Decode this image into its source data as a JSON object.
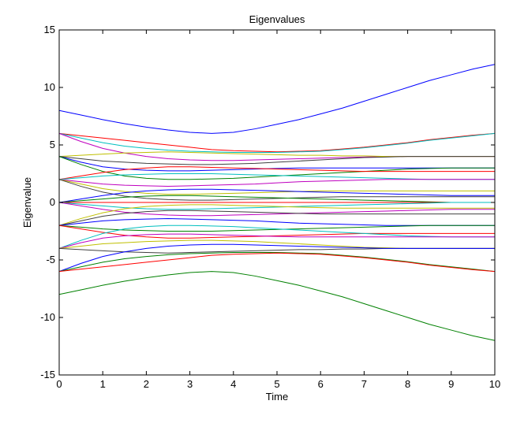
{
  "chart_data": {
    "type": "line",
    "title": "Eigenvalues",
    "xlabel": "Time",
    "ylabel": "Eigenvalue",
    "xlim": [
      0,
      10
    ],
    "ylim": [
      -15,
      15
    ],
    "xticks": [
      0,
      1,
      2,
      3,
      4,
      5,
      6,
      7,
      8,
      9,
      10
    ],
    "yticks": [
      -15,
      -10,
      -5,
      0,
      5,
      10,
      15
    ],
    "xtick_labels": [
      "0",
      "1",
      "2",
      "3",
      "4",
      "5",
      "6",
      "7",
      "8",
      "9",
      "10"
    ],
    "ytick_labels": [
      "-15",
      "-10",
      "-5",
      "0",
      "5",
      "10",
      "15"
    ],
    "grid": false,
    "legend": "none",
    "series_colors": [
      "#0000ff",
      "#008000",
      "#ff0000",
      "#00bfbf",
      "#bf00bf",
      "#bfbf00",
      "#404040"
    ],
    "time": [
      0,
      0.5,
      1,
      1.5,
      2,
      2.5,
      3,
      3.5,
      4,
      4.5,
      5,
      5.5,
      6,
      6.5,
      7,
      7.5,
      8,
      8.5,
      9,
      9.5,
      10
    ],
    "series": [
      {
        "values": [
          8.0,
          7.6,
          7.2,
          6.85,
          6.55,
          6.3,
          6.1,
          6.0,
          6.1,
          6.4,
          6.8,
          7.2,
          7.7,
          8.2,
          8.8,
          9.4,
          10.0,
          10.6,
          11.1,
          11.6,
          12.0
        ]
      },
      {
        "values": [
          -8.0,
          -7.6,
          -7.2,
          -6.85,
          -6.55,
          -6.3,
          -6.1,
          -6.0,
          -6.1,
          -6.4,
          -6.8,
          -7.2,
          -7.7,
          -8.2,
          -8.8,
          -9.4,
          -10.0,
          -10.6,
          -11.1,
          -11.6,
          -12.0
        ]
      },
      {
        "values": [
          6.0,
          5.8,
          5.6,
          5.4,
          5.2,
          5.0,
          4.8,
          4.6,
          4.5,
          4.45,
          4.4,
          4.45,
          4.5,
          4.65,
          4.8,
          5.0,
          5.2,
          5.45,
          5.65,
          5.85,
          6.0
        ]
      },
      {
        "values": [
          6.0,
          5.6,
          5.2,
          4.9,
          4.7,
          4.55,
          4.45,
          4.4,
          4.35,
          4.35,
          4.35,
          4.4,
          4.45,
          4.6,
          4.75,
          4.95,
          5.15,
          5.4,
          5.6,
          5.8,
          6.0
        ]
      },
      {
        "values": [
          6.0,
          5.3,
          4.7,
          4.3,
          4.0,
          3.8,
          3.7,
          3.65,
          3.65,
          3.7,
          3.75,
          3.8,
          3.85,
          3.9,
          3.95,
          4.0,
          4.0,
          4.0,
          4.0,
          4.0,
          4.0
        ]
      },
      {
        "values": [
          4.0,
          4.1,
          4.2,
          4.3,
          4.35,
          4.4,
          4.35,
          4.3,
          4.25,
          4.2,
          4.15,
          4.1,
          4.1,
          4.05,
          4.05,
          4.0,
          4.0,
          4.0,
          4.0,
          4.0,
          4.0
        ]
      },
      {
        "values": [
          4.0,
          3.8,
          3.6,
          3.5,
          3.4,
          3.35,
          3.3,
          3.3,
          3.35,
          3.4,
          3.5,
          3.6,
          3.7,
          3.8,
          3.9,
          3.95,
          4.0,
          4.0,
          4.0,
          4.0,
          4.0
        ]
      },
      {
        "values": [
          4.0,
          3.5,
          3.1,
          2.9,
          2.8,
          2.75,
          2.75,
          2.8,
          2.85,
          2.9,
          2.95,
          3.0,
          3.0,
          3.0,
          3.0,
          3.0,
          3.0,
          3.0,
          3.0,
          3.0,
          3.0
        ]
      },
      {
        "values": [
          4.0,
          3.3,
          2.7,
          2.3,
          2.1,
          2.0,
          2.0,
          2.05,
          2.1,
          2.2,
          2.3,
          2.4,
          2.5,
          2.6,
          2.7,
          2.8,
          2.9,
          2.95,
          3.0,
          3.0,
          3.0
        ]
      },
      {
        "values": [
          2.0,
          2.3,
          2.6,
          2.85,
          3.0,
          3.1,
          3.1,
          3.05,
          3.0,
          2.95,
          2.9,
          2.85,
          2.8,
          2.75,
          2.7,
          2.7,
          2.7,
          2.7,
          2.7,
          2.7,
          2.7
        ]
      },
      {
        "values": [
          2.0,
          2.15,
          2.3,
          2.4,
          2.45,
          2.5,
          2.5,
          2.5,
          2.45,
          2.4,
          2.35,
          2.3,
          2.25,
          2.2,
          2.15,
          2.1,
          2.05,
          2.0,
          2.0,
          2.0,
          2.0
        ]
      },
      {
        "values": [
          2.0,
          1.8,
          1.6,
          1.5,
          1.45,
          1.4,
          1.45,
          1.5,
          1.55,
          1.6,
          1.7,
          1.8,
          1.85,
          1.9,
          1.95,
          2.0,
          2.0,
          2.0,
          2.0,
          2.0,
          2.0
        ]
      },
      {
        "values": [
          2.0,
          1.6,
          1.2,
          0.95,
          0.8,
          0.7,
          0.7,
          0.75,
          0.8,
          0.85,
          0.9,
          0.95,
          1.0,
          1.0,
          1.0,
          1.0,
          1.0,
          1.0,
          1.0,
          1.0,
          1.0
        ]
      },
      {
        "values": [
          2.0,
          1.4,
          0.9,
          0.55,
          0.35,
          0.25,
          0.2,
          0.2,
          0.25,
          0.3,
          0.35,
          0.4,
          0.45,
          0.5,
          0.5,
          0.5,
          0.5,
          0.5,
          0.5,
          0.5,
          0.5
        ]
      },
      {
        "values": [
          0.0,
          0.3,
          0.6,
          0.85,
          1.0,
          1.1,
          1.15,
          1.15,
          1.1,
          1.05,
          1.0,
          0.95,
          0.9,
          0.85,
          0.8,
          0.75,
          0.7,
          0.65,
          0.6,
          0.6,
          0.6
        ]
      },
      {
        "values": [
          0.0,
          0.15,
          0.3,
          0.45,
          0.55,
          0.6,
          0.6,
          0.55,
          0.5,
          0.45,
          0.4,
          0.35,
          0.3,
          0.25,
          0.2,
          0.15,
          0.1,
          0.05,
          0.0,
          0.0,
          0.0
        ]
      },
      {
        "values": [
          0.0,
          0.0,
          0.0,
          0.0,
          0.0,
          0.0,
          0.0,
          0.0,
          0.0,
          0.0,
          0.0,
          0.0,
          0.0,
          0.0,
          0.0,
          0.0,
          0.0,
          0.0,
          0.0,
          0.0,
          0.0
        ]
      },
      {
        "values": [
          0.0,
          -0.15,
          -0.3,
          -0.45,
          -0.55,
          -0.6,
          -0.6,
          -0.55,
          -0.5,
          -0.45,
          -0.4,
          -0.35,
          -0.3,
          -0.25,
          -0.2,
          -0.15,
          -0.1,
          -0.05,
          0.0,
          0.0,
          0.0
        ]
      },
      {
        "values": [
          0.0,
          -0.3,
          -0.6,
          -0.85,
          -1.0,
          -1.1,
          -1.15,
          -1.15,
          -1.1,
          -1.05,
          -1.0,
          -0.95,
          -0.9,
          -0.85,
          -0.8,
          -0.75,
          -0.7,
          -0.65,
          -0.6,
          -0.6,
          -0.6
        ]
      },
      {
        "values": [
          -2.0,
          -1.4,
          -0.9,
          -0.55,
          -0.35,
          -0.25,
          -0.2,
          -0.2,
          -0.25,
          -0.3,
          -0.35,
          -0.4,
          -0.45,
          -0.5,
          -0.5,
          -0.5,
          -0.5,
          -0.5,
          -0.5,
          -0.5,
          -0.5
        ]
      },
      {
        "values": [
          -2.0,
          -1.6,
          -1.2,
          -0.95,
          -0.8,
          -0.7,
          -0.7,
          -0.75,
          -0.8,
          -0.85,
          -0.9,
          -0.95,
          -1.0,
          -1.0,
          -1.0,
          -1.0,
          -1.0,
          -1.0,
          -1.0,
          -1.0,
          -1.0
        ]
      },
      {
        "values": [
          -2.0,
          -1.8,
          -1.6,
          -1.5,
          -1.45,
          -1.4,
          -1.45,
          -1.5,
          -1.55,
          -1.6,
          -1.7,
          -1.8,
          -1.85,
          -1.9,
          -1.95,
          -2.0,
          -2.0,
          -2.0,
          -2.0,
          -2.0,
          -2.0
        ]
      },
      {
        "values": [
          -2.0,
          -2.15,
          -2.3,
          -2.4,
          -2.45,
          -2.5,
          -2.5,
          -2.5,
          -2.45,
          -2.4,
          -2.35,
          -2.3,
          -2.25,
          -2.2,
          -2.15,
          -2.1,
          -2.05,
          -2.0,
          -2.0,
          -2.0,
          -2.0
        ]
      },
      {
        "values": [
          -2.0,
          -2.3,
          -2.6,
          -2.85,
          -3.0,
          -3.1,
          -3.1,
          -3.05,
          -3.0,
          -2.95,
          -2.9,
          -2.85,
          -2.8,
          -2.75,
          -2.7,
          -2.7,
          -2.7,
          -2.7,
          -2.7,
          -2.7,
          -2.7
        ]
      },
      {
        "values": [
          -4.0,
          -3.3,
          -2.7,
          -2.3,
          -2.1,
          -2.0,
          -2.0,
          -2.05,
          -2.1,
          -2.2,
          -2.3,
          -2.4,
          -2.5,
          -2.6,
          -2.7,
          -2.8,
          -2.9,
          -2.95,
          -3.0,
          -3.0,
          -3.0
        ]
      },
      {
        "values": [
          -4.0,
          -3.5,
          -3.1,
          -2.9,
          -2.8,
          -2.75,
          -2.75,
          -2.8,
          -2.85,
          -2.9,
          -2.95,
          -3.0,
          -3.0,
          -3.0,
          -3.0,
          -3.0,
          -3.0,
          -3.0,
          -3.0,
          -3.0,
          -3.0
        ]
      },
      {
        "values": [
          -4.0,
          -3.8,
          -3.6,
          -3.5,
          -3.4,
          -3.35,
          -3.3,
          -3.3,
          -3.35,
          -3.4,
          -3.5,
          -3.6,
          -3.7,
          -3.8,
          -3.9,
          -3.95,
          -4.0,
          -4.0,
          -4.0,
          -4.0,
          -4.0
        ]
      },
      {
        "values": [
          -4.0,
          -4.1,
          -4.2,
          -4.3,
          -4.35,
          -4.4,
          -4.35,
          -4.3,
          -4.25,
          -4.2,
          -4.15,
          -4.1,
          -4.1,
          -4.05,
          -4.05,
          -4.0,
          -4.0,
          -4.0,
          -4.0,
          -4.0,
          -4.0
        ]
      },
      {
        "values": [
          -6.0,
          -5.3,
          -4.7,
          -4.3,
          -4.0,
          -3.8,
          -3.7,
          -3.65,
          -3.65,
          -3.7,
          -3.75,
          -3.8,
          -3.85,
          -3.9,
          -3.95,
          -4.0,
          -4.0,
          -4.0,
          -4.0,
          -4.0,
          -4.0
        ]
      },
      {
        "values": [
          -6.0,
          -5.6,
          -5.2,
          -4.9,
          -4.7,
          -4.55,
          -4.45,
          -4.4,
          -4.35,
          -4.35,
          -4.35,
          -4.4,
          -4.45,
          -4.6,
          -4.75,
          -4.95,
          -5.15,
          -5.4,
          -5.6,
          -5.8,
          -6.0
        ]
      },
      {
        "values": [
          -6.0,
          -5.8,
          -5.6,
          -5.4,
          -5.2,
          -5.0,
          -4.8,
          -4.6,
          -4.5,
          -4.45,
          -4.4,
          -4.45,
          -4.5,
          -4.65,
          -4.8,
          -5.0,
          -5.2,
          -5.45,
          -5.65,
          -5.85,
          -6.0
        ]
      }
    ]
  }
}
